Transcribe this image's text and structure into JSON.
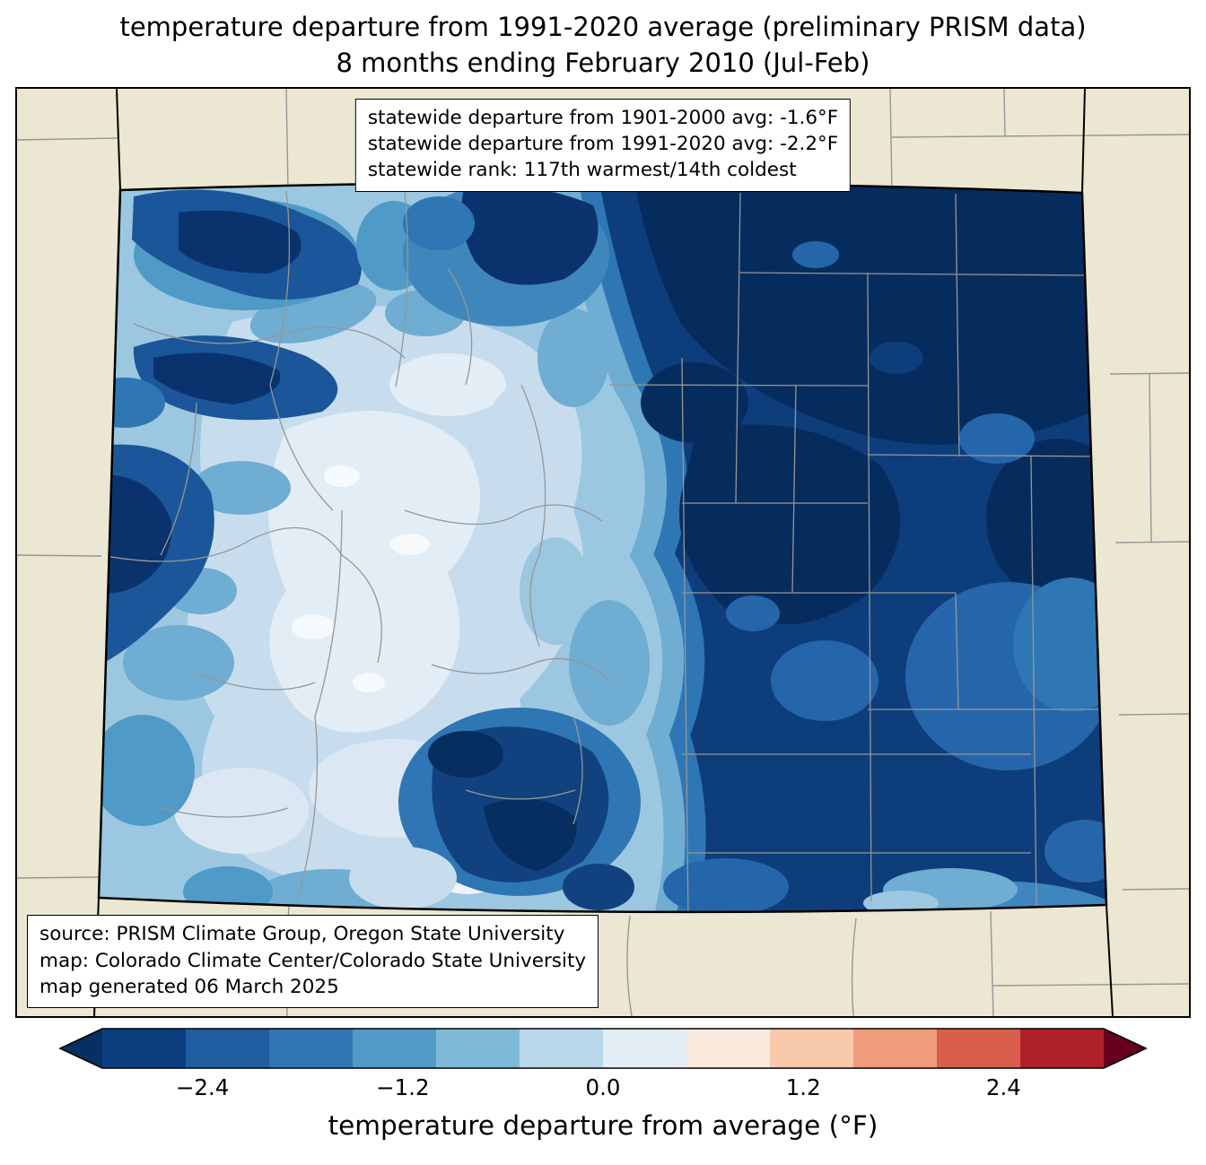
{
  "title": {
    "line1": "temperature departure from 1991-2020 average (preliminary PRISM data)",
    "line2": "8 months ending February 2010 (Jul-Feb)"
  },
  "stats_box": {
    "lines": [
      "statewide departure from 1901-2000 avg: -1.6°F",
      "statewide departure from 1991-2020 avg: -2.2°F",
      "statewide rank: 117th warmest/14th coldest"
    ]
  },
  "source_box": {
    "lines": [
      "source: PRISM Climate Group, Oregon State University",
      "map: Colorado Climate Center/Colorado State University",
      "map generated 06 March 2025"
    ]
  },
  "colorbar": {
    "label": "temperature departure from average (°F)",
    "units": "°F",
    "range": [
      -3.0,
      3.0
    ],
    "ticks": [
      {
        "label": "−2.4",
        "percent": 10
      },
      {
        "label": "−1.2",
        "percent": 30
      },
      {
        "label": "0.0",
        "percent": 50
      },
      {
        "label": "1.2",
        "percent": 70
      },
      {
        "label": "2.4",
        "percent": 90
      }
    ],
    "segments": [
      "#0c3f80",
      "#205ea2",
      "#3076b5",
      "#4f9ac7",
      "#7fb9d8",
      "#b9d8ea",
      "#e3edf5",
      "#fbeade",
      "#f9c9ac",
      "#f09c7b",
      "#d95f4c",
      "#b02028"
    ],
    "left_arrow_color": "#053061",
    "right_arrow_color": "#67001f"
  },
  "map": {
    "region": "Colorado",
    "background_color": "#ece7d2",
    "county_line_color": "#969696",
    "state_border_color": "#000000"
  }
}
